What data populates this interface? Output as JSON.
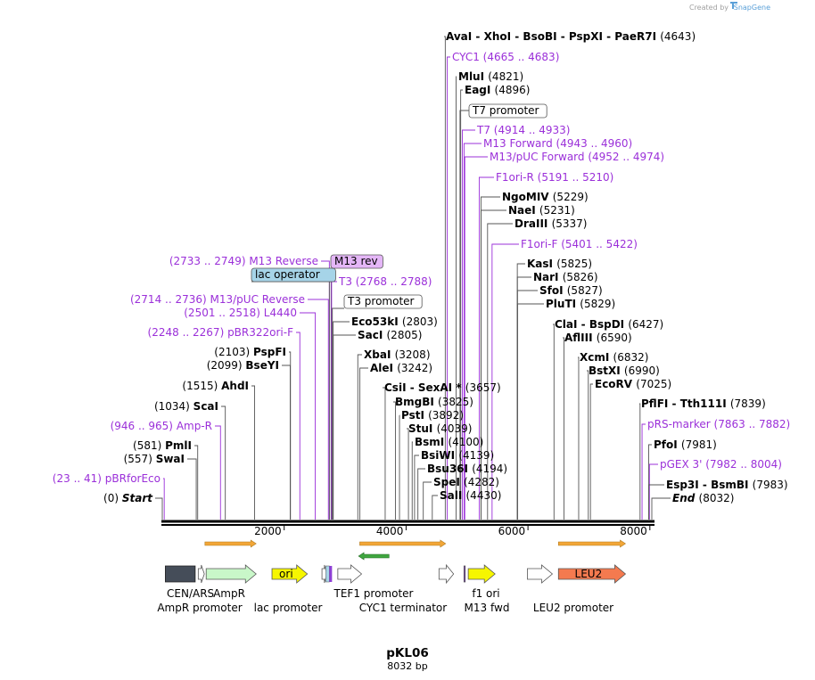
{
  "credit": {
    "text": "Created by",
    "brand": "SnapGene"
  },
  "plasmid": {
    "name": "pKL06",
    "length_label": "8032 bp",
    "length": 8032
  },
  "ruler": {
    "ticks": [
      {
        "pos": 2000,
        "label": "2000"
      },
      {
        "pos": 4000,
        "label": "4000"
      },
      {
        "pos": 6000,
        "label": "6000"
      },
      {
        "pos": 8000,
        "label": "8000"
      }
    ]
  },
  "colors": {
    "enzyme_line": "#000000",
    "primer": "#9b30d9",
    "backbone": "#000000",
    "amp": "#c9f7c9",
    "ori": "#f6f600",
    "leu2": "#f47a4f",
    "cen": "#454d59",
    "lacop": "#a6d4e8",
    "m13rev": "#e4b6f7",
    "operon": "#f2a637",
    "lacz": "#3fa63f"
  },
  "left_labels": [
    {
      "name": "M13 Reverse",
      "pos": "(2733 .. 2749)",
      "kind": "primer",
      "at": 2741
    },
    {
      "name": "M13/pUC Reverse",
      "pos": "(2714 .. 2736)",
      "kind": "primer",
      "at": 2725
    },
    {
      "name": "L4440",
      "pos": "(2501 .. 2518)",
      "kind": "primer",
      "at": 2510
    },
    {
      "name": "pBR322ori-F",
      "pos": "(2248 .. 2267)",
      "kind": "primer",
      "at": 2257
    },
    {
      "name": "PspFI",
      "pos": "(2103)",
      "kind": "enzyme",
      "at": 2103
    },
    {
      "name": "BseYI",
      "pos": "(2099)",
      "kind": "enzyme",
      "at": 2099
    },
    {
      "name": "AhdI",
      "pos": "(1515)",
      "kind": "enzyme",
      "at": 1515
    },
    {
      "name": "ScaI",
      "pos": "(1034)",
      "kind": "enzyme",
      "at": 1034
    },
    {
      "name": "Amp-R",
      "pos": "(946 .. 965)",
      "kind": "primer",
      "at": 955
    },
    {
      "name": "PmlI",
      "pos": "(581)",
      "kind": "enzyme",
      "at": 581
    },
    {
      "name": "SwaI",
      "pos": "(557)",
      "kind": "enzyme",
      "at": 557
    },
    {
      "name": "pBRforEco",
      "pos": "(23 .. 41)",
      "kind": "primer",
      "at": 32
    },
    {
      "name": "Start",
      "pos": "(0)",
      "kind": "start",
      "at": 0
    }
  ],
  "right_labels": [
    {
      "name": "AvaI  -  XhoI  -  BsoBI  -  PspXI  -  PaeR7I",
      "pos": "(4643)",
      "kind": "enzyme",
      "at": 4643
    },
    {
      "name": "CYC1",
      "pos": "(4665 .. 4683)",
      "kind": "primer",
      "at": 4674
    },
    {
      "name": "MluI",
      "pos": "(4821)",
      "kind": "enzyme",
      "at": 4821
    },
    {
      "name": "EagI",
      "pos": "(4896)",
      "kind": "enzyme",
      "at": 4896
    },
    {
      "name": "T7 promoter",
      "pos": "",
      "kind": "boxed",
      "at": 4885
    },
    {
      "name": "T7",
      "pos": "(4914 .. 4933)",
      "kind": "primer",
      "at": 4923
    },
    {
      "name": "M13 Forward",
      "pos": "(4943 .. 4960)",
      "kind": "primer",
      "at": 4951
    },
    {
      "name": "M13/pUC Forward",
      "pos": "(4952 .. 4974)",
      "kind": "primer",
      "at": 4963
    },
    {
      "name": "F1ori-R",
      "pos": "(5191 .. 5210)",
      "kind": "primer",
      "at": 5200
    },
    {
      "name": "NgoMIV",
      "pos": "(5229)",
      "kind": "enzyme",
      "at": 5229
    },
    {
      "name": "NaeI",
      "pos": "(5231)",
      "kind": "enzyme",
      "at": 5231
    },
    {
      "name": "DraIII",
      "pos": "(5337)",
      "kind": "enzyme",
      "at": 5337
    },
    {
      "name": "F1ori-F",
      "pos": "(5401 .. 5422)",
      "kind": "primer",
      "at": 5411
    },
    {
      "name": "KasI",
      "pos": "(5825)",
      "kind": "enzyme",
      "at": 5825
    },
    {
      "name": "NarI",
      "pos": "(5826)",
      "kind": "enzyme",
      "at": 5826
    },
    {
      "name": "SfoI",
      "pos": "(5827)",
      "kind": "enzyme",
      "at": 5827
    },
    {
      "name": "PluTI",
      "pos": "(5829)",
      "kind": "enzyme",
      "at": 5829
    },
    {
      "name": "ClaI  -  BspDI",
      "pos": "(6427)",
      "kind": "enzyme",
      "at": 6427
    },
    {
      "name": "AflIII",
      "pos": "(6590)",
      "kind": "enzyme",
      "at": 6590
    },
    {
      "name": "XcmI",
      "pos": "(6832)",
      "kind": "enzyme",
      "at": 6832
    },
    {
      "name": "BstXI",
      "pos": "(6990)",
      "kind": "enzyme",
      "at": 6990
    },
    {
      "name": "EcoRV",
      "pos": "(7025)",
      "kind": "enzyme",
      "at": 7025
    },
    {
      "name": "PflFI  -  Tth111I",
      "pos": "(7839)",
      "kind": "enzyme",
      "at": 7839
    },
    {
      "name": "pRS-marker",
      "pos": "(7863 .. 7882)",
      "kind": "primer",
      "at": 7872
    },
    {
      "name": "PfoI",
      "pos": "(7981)",
      "kind": "enzyme",
      "at": 7981
    },
    {
      "name": "pGEX 3'",
      "pos": "(7982 .. 8004)",
      "kind": "primer",
      "at": 7993
    },
    {
      "name": "Esp3I  -  BsmBI",
      "pos": "(7983)",
      "kind": "enzyme",
      "at": 7983
    },
    {
      "name": "End",
      "pos": "(8032)",
      "kind": "end",
      "at": 8032
    }
  ],
  "mid_labels": [
    {
      "name": "lac operator",
      "pos": "",
      "kind": "boxed-lacop",
      "at": 2770
    },
    {
      "name": "M13 rev",
      "pos": "",
      "kind": "boxed-m13",
      "at": 2741
    },
    {
      "name": "T3",
      "pos": "(2768 .. 2788)",
      "kind": "primer",
      "at": 2778
    },
    {
      "name": "T3 promoter",
      "pos": "",
      "kind": "boxed",
      "at": 2790
    },
    {
      "name": "Eco53kI",
      "pos": "(2803)",
      "kind": "enzyme",
      "at": 2803
    },
    {
      "name": "SacI",
      "pos": "(2805)",
      "kind": "enzyme",
      "at": 2805
    },
    {
      "name": "XbaI",
      "pos": "(3208)",
      "kind": "enzyme",
      "at": 3208
    },
    {
      "name": "AleI",
      "pos": "(3242)",
      "kind": "enzyme",
      "at": 3242
    },
    {
      "name": "CsiI  -  SexAI *",
      "pos": "(3657)",
      "kind": "enzyme",
      "at": 3657
    },
    {
      "name": "BmgBI",
      "pos": "(3825)",
      "kind": "enzyme",
      "at": 3825
    },
    {
      "name": "PstI",
      "pos": "(3892)",
      "kind": "enzyme",
      "at": 3892
    },
    {
      "name": "StuI",
      "pos": "(4039)",
      "kind": "enzyme",
      "at": 4039
    },
    {
      "name": "BsmI",
      "pos": "(4100)",
      "kind": "enzyme",
      "at": 4100
    },
    {
      "name": "BsiWI",
      "pos": "(4139)",
      "kind": "enzyme",
      "at": 4139
    },
    {
      "name": "Bsu36I",
      "pos": "(4194)",
      "kind": "enzyme",
      "at": 4194
    },
    {
      "name": "SpeI",
      "pos": "(4282)",
      "kind": "enzyme",
      "at": 4282
    },
    {
      "name": "SalI",
      "pos": "(4430)",
      "kind": "enzyme",
      "at": 4430
    }
  ],
  "features": [
    {
      "name": "CEN/ARS",
      "start": 50,
      "end": 540,
      "kind": "cen"
    },
    {
      "name": "AmpR promoter",
      "start": 590,
      "end": 690,
      "kind": "promoter"
    },
    {
      "name": "AmpR",
      "start": 720,
      "end": 1540,
      "kind": "amp"
    },
    {
      "name": "ori",
      "start": 1800,
      "end": 2380,
      "kind": "ori"
    },
    {
      "name": "lac promoter",
      "start": 2620,
      "end": 2700,
      "kind": "promoter"
    },
    {
      "name": "TEF1 promoter",
      "start": 2880,
      "end": 3270,
      "kind": "promoter"
    },
    {
      "name": "CYC1 terminator",
      "start": 4540,
      "end": 4780,
      "kind": "promoter"
    },
    {
      "name": "f1 ori",
      "start": 5020,
      "end": 5460,
      "kind": "ori"
    },
    {
      "name": "M13 fwd",
      "start": 4950,
      "end": 4970,
      "kind": "m13"
    },
    {
      "name": "LEU2 promoter",
      "start": 5990,
      "end": 6400,
      "kind": "promoter"
    },
    {
      "name": "LEU2",
      "start": 6500,
      "end": 7600,
      "kind": "leu2"
    }
  ],
  "operons": [
    {
      "start": 700,
      "end": 1540,
      "dir": 1
    },
    {
      "start": 3240,
      "end": 4650,
      "dir": 1
    },
    {
      "start": 6500,
      "end": 7600,
      "dir": 1
    }
  ],
  "laczs": [
    {
      "start": 3220,
      "end": 3720,
      "dir": -1
    }
  ]
}
